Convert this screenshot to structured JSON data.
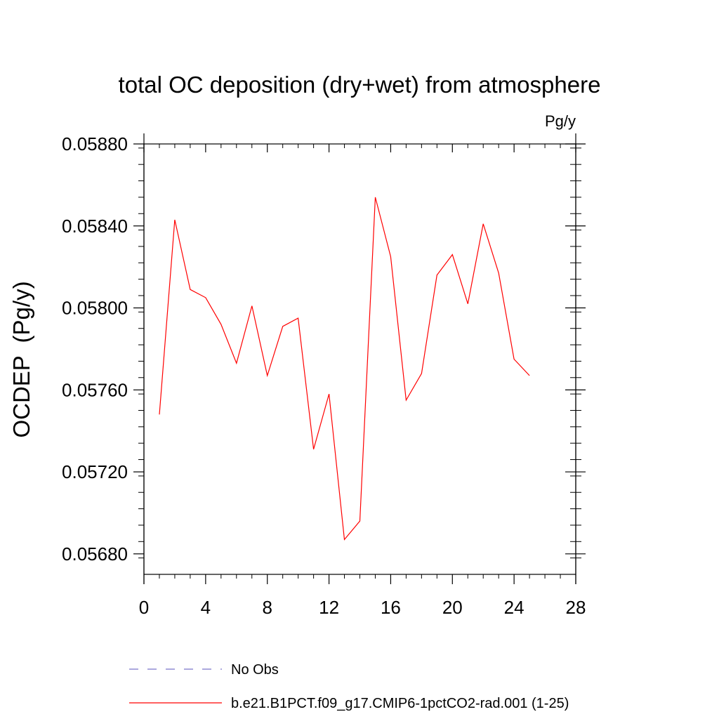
{
  "chart_data": {
    "type": "line",
    "title": "total OC deposition (dry+wet) from atmosphere",
    "units_label": "Pg/y",
    "ylabel": "OCDEP  (Pg/y)",
    "xlabel": "",
    "xlim": [
      0,
      28
    ],
    "ylim": [
      0.0567,
      0.0588
    ],
    "x_ticks": [
      0,
      4,
      8,
      12,
      16,
      20,
      24,
      28
    ],
    "x_tick_labels": [
      "0",
      "4",
      "8",
      "12",
      "16",
      "20",
      "24",
      "28"
    ],
    "y_ticks": [
      0.0568,
      0.0572,
      0.0576,
      0.058,
      0.0584,
      0.0588
    ],
    "y_tick_labels": [
      "0.05680",
      "0.05720",
      "0.05760",
      "0.05800",
      "0.05840",
      "0.05880"
    ],
    "grid": false,
    "legend_position": "bottom",
    "legend": [
      {
        "label": "No Obs",
        "color": "#7a73c9",
        "dash": "dashed"
      },
      {
        "label": "b.e21.B1PCT.f09_g17.CMIP6-1pctCO2-rad.001 (1-25)",
        "color": "#ff0000",
        "dash": "solid"
      }
    ],
    "series": [
      {
        "name": "b.e21.B1PCT.f09_g17.CMIP6-1pctCO2-rad.001 (1-25)",
        "color": "#ff0000",
        "x": [
          1,
          2,
          3,
          4,
          5,
          6,
          7,
          8,
          9,
          10,
          11,
          12,
          13,
          14,
          15,
          16,
          17,
          18,
          19,
          20,
          21,
          22,
          23,
          24,
          25
        ],
        "values": [
          0.05748,
          0.05843,
          0.05809,
          0.05805,
          0.05792,
          0.05773,
          0.05801,
          0.05767,
          0.05791,
          0.05795,
          0.05731,
          0.05758,
          0.05687,
          0.05696,
          0.05854,
          0.05825,
          0.05755,
          0.05768,
          0.05816,
          0.05826,
          0.05802,
          0.05841,
          0.05817,
          0.05775,
          0.05767
        ]
      }
    ]
  }
}
